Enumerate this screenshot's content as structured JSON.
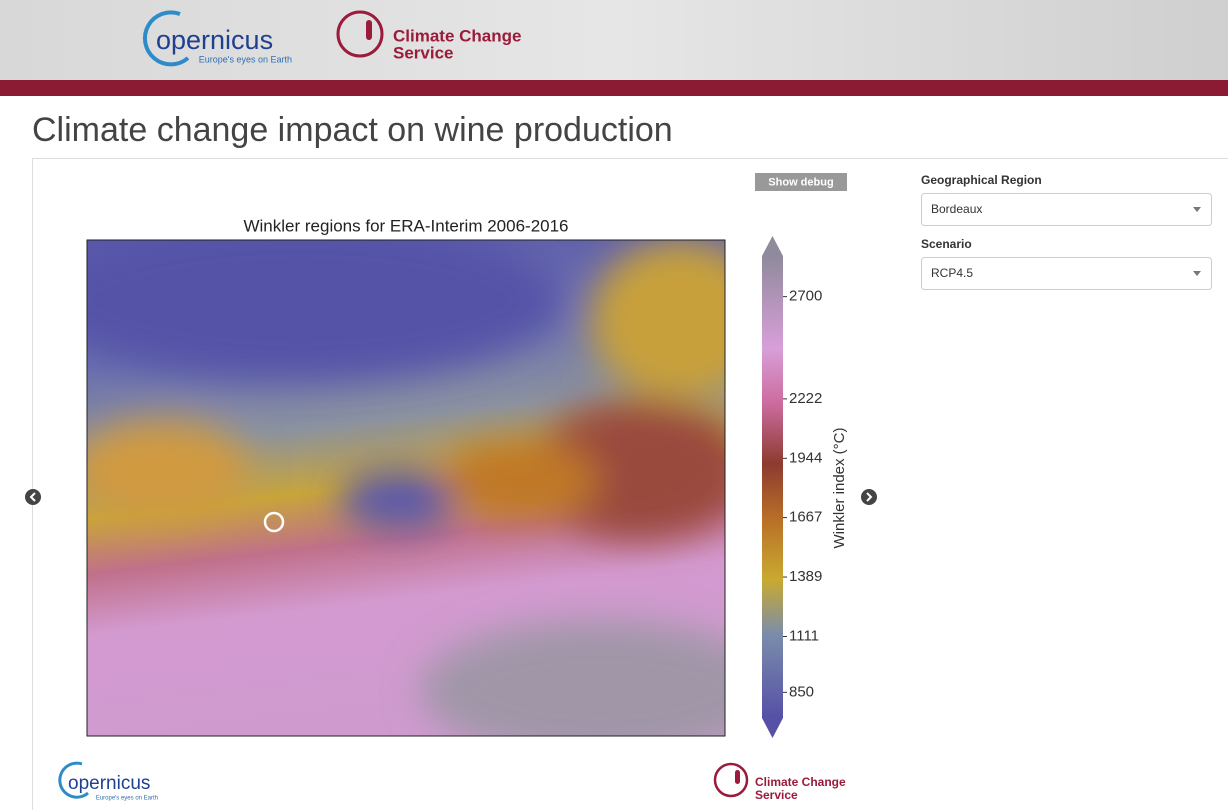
{
  "header": {
    "copernicus_logo": {
      "name": "opernicus",
      "tagline": "Europe's eyes on Earth"
    },
    "c3s_logo": {
      "line1": "Climate Change",
      "line2": "Service"
    }
  },
  "page_title": "Climate change impact on wine production",
  "controls": {
    "show_debug": "Show debug",
    "region": {
      "label": "Geographical Region",
      "value": "Bordeaux"
    },
    "scenario": {
      "label": "Scenario",
      "value": "RCP4.5"
    }
  },
  "chart_data": {
    "type": "map",
    "title": "Winkler regions for ERA-Interim 2006-2016",
    "colorbar": {
      "label": "Winkler index (°C)",
      "lim": [
        730,
        2890
      ],
      "ticks": [
        850,
        1111,
        1389,
        1667,
        1944,
        2222,
        2700
      ]
    }
  },
  "footer": {
    "copernicus_logo": {
      "name": "opernicus",
      "tagline": "Europe's eyes on Earth"
    },
    "c3s_logo": {
      "line1": "Climate Change",
      "line2": "Service"
    }
  }
}
